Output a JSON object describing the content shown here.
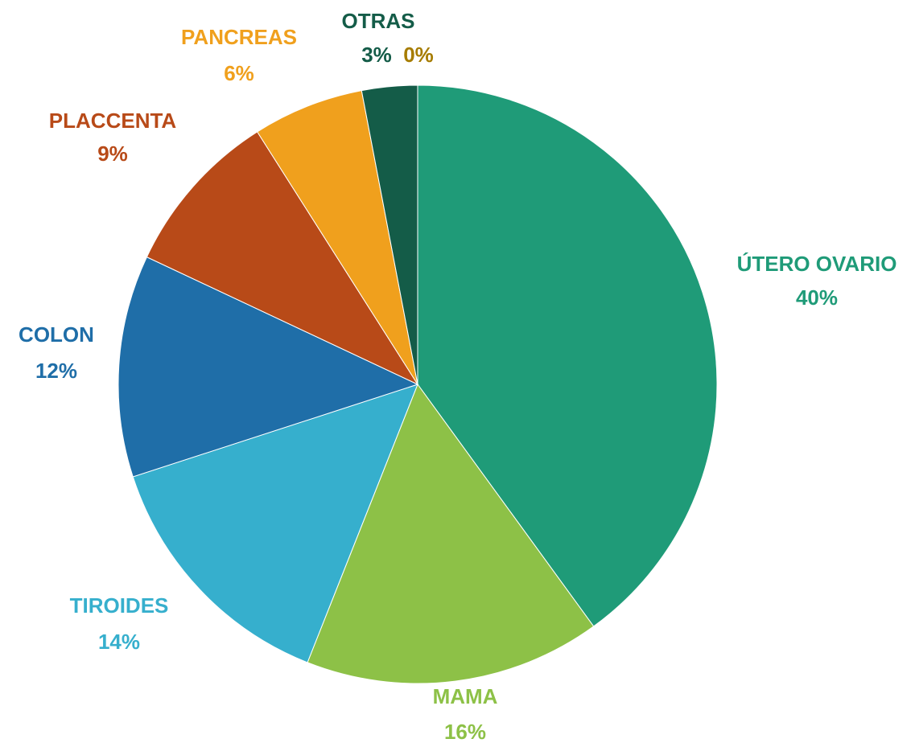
{
  "chart_data": {
    "type": "pie",
    "categories": [
      "ÚTERO OVARIO",
      "MAMA",
      "TIROIDES",
      "COLON",
      "PLACCENTA",
      "PANCREAS",
      "OTRAS",
      null
    ],
    "values": [
      40,
      16,
      14,
      12,
      9,
      6,
      3,
      0
    ],
    "value_labels": [
      "40%",
      "16%",
      "14%",
      "12%",
      "9%",
      "6%",
      "3%",
      "0%"
    ],
    "colors": [
      "#1f9b78",
      "#8dc147",
      "#36afcd",
      "#1f6ea8",
      "#b84a18",
      "#f0a01d",
      "#145c48",
      "#a67c00"
    ]
  }
}
